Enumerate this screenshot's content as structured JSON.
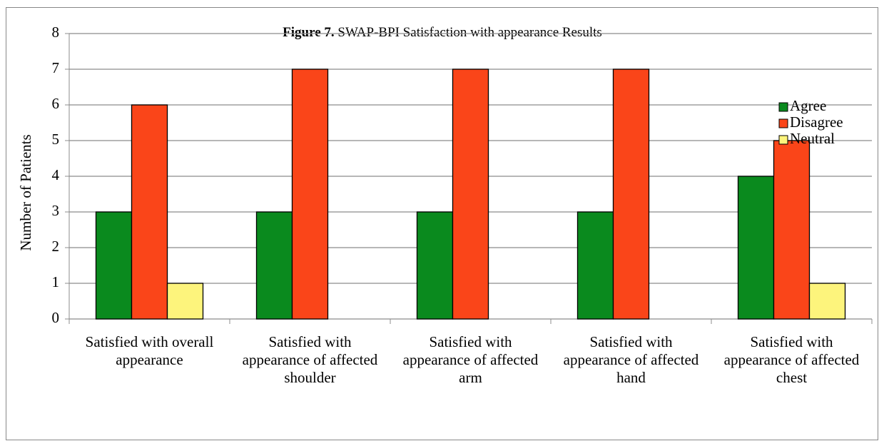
{
  "chart_data": {
    "type": "bar",
    "figure_label": "Figure 7.",
    "title": "SWAP-BPI Satisfaction with appearance Results",
    "y_label": "Number of Patients",
    "categories": [
      "Satisfied with overall appearance",
      "Satisfied with appearance of affected shoulder",
      "Satisfied with appearance of affected arm",
      "Satisfied with appearance of affected hand",
      "Satisfied with appearance of affected chest"
    ],
    "series": [
      {
        "name": "Agree",
        "color": "#0a8a1e",
        "values": [
          3,
          3,
          3,
          3,
          4
        ]
      },
      {
        "name": "Disagree",
        "color": "#fa4519",
        "values": [
          6,
          7,
          7,
          7,
          5
        ]
      },
      {
        "name": "Neutral",
        "color": "#fdf47c",
        "values": [
          1,
          0,
          0,
          0,
          1
        ]
      }
    ],
    "ylim": [
      0,
      8
    ],
    "yticks": [
      0,
      1,
      2,
      3,
      4,
      5,
      6,
      7,
      8
    ],
    "grid": true,
    "legend": "top-right"
  }
}
